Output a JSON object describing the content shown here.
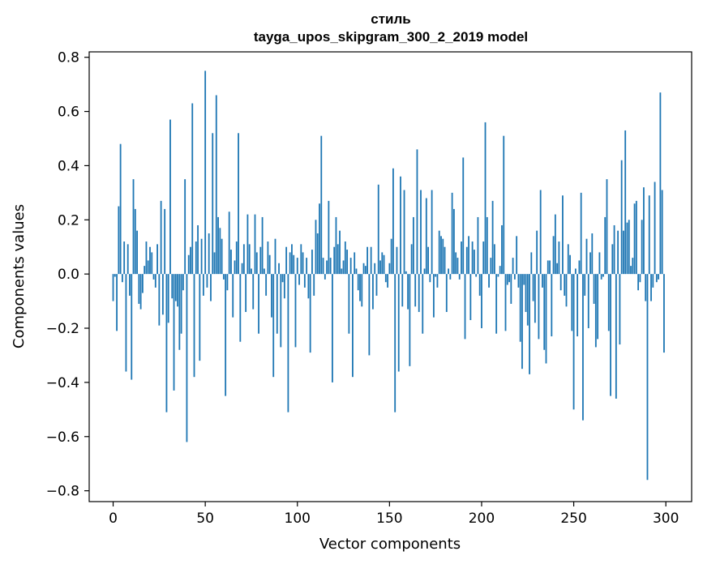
{
  "chart_data": {
    "type": "bar",
    "title": "стиль",
    "subtitle": "tayga_upos_skipgram_300_2_2019 model",
    "xlabel": "Vector components",
    "ylabel": "Components values",
    "xlim": [
      -13,
      314
    ],
    "ylim": [
      -0.84,
      0.82
    ],
    "xticks": [
      0,
      50,
      100,
      150,
      200,
      250,
      300
    ],
    "yticks": [
      -0.8,
      -0.6,
      -0.4,
      -0.2,
      0.0,
      0.2,
      0.4,
      0.6,
      0.8
    ],
    "ytick_labels": [
      "−0.8",
      "−0.6",
      "−0.4",
      "−0.2",
      "0.0",
      "0.2",
      "0.4",
      "0.6",
      "0.8"
    ],
    "bar_color": "#1f77b4",
    "x": [
      0,
      1,
      2,
      3,
      4,
      5,
      6,
      7,
      8,
      9,
      10,
      11,
      12,
      13,
      14,
      15,
      16,
      17,
      18,
      19,
      20,
      21,
      22,
      23,
      24,
      25,
      26,
      27,
      28,
      29,
      30,
      31,
      32,
      33,
      34,
      35,
      36,
      37,
      38,
      39,
      40,
      41,
      42,
      43,
      44,
      45,
      46,
      47,
      48,
      49,
      50,
      51,
      52,
      53,
      54,
      55,
      56,
      57,
      58,
      59,
      60,
      61,
      62,
      63,
      64,
      65,
      66,
      67,
      68,
      69,
      70,
      71,
      72,
      73,
      74,
      75,
      76,
      77,
      78,
      79,
      80,
      81,
      82,
      83,
      84,
      85,
      86,
      87,
      88,
      89,
      90,
      91,
      92,
      93,
      94,
      95,
      96,
      97,
      98,
      99,
      100,
      101,
      102,
      103,
      104,
      105,
      106,
      107,
      108,
      109,
      110,
      111,
      112,
      113,
      114,
      115,
      116,
      117,
      118,
      119,
      120,
      121,
      122,
      123,
      124,
      125,
      126,
      127,
      128,
      129,
      130,
      131,
      132,
      133,
      134,
      135,
      136,
      137,
      138,
      139,
      140,
      141,
      142,
      143,
      144,
      145,
      146,
      147,
      148,
      149,
      150,
      151,
      152,
      153,
      154,
      155,
      156,
      157,
      158,
      159,
      160,
      161,
      162,
      163,
      164,
      165,
      166,
      167,
      168,
      169,
      170,
      171,
      172,
      173,
      174,
      175,
      176,
      177,
      178,
      179,
      180,
      181,
      182,
      183,
      184,
      185,
      186,
      187,
      188,
      189,
      190,
      191,
      192,
      193,
      194,
      195,
      196,
      197,
      198,
      199,
      200,
      201,
      202,
      203,
      204,
      205,
      206,
      207,
      208,
      209,
      210,
      211,
      212,
      213,
      214,
      215,
      216,
      217,
      218,
      219,
      220,
      221,
      222,
      223,
      224,
      225,
      226,
      227,
      228,
      229,
      230,
      231,
      232,
      233,
      234,
      235,
      236,
      237,
      238,
      239,
      240,
      241,
      242,
      243,
      244,
      245,
      246,
      247,
      248,
      249,
      250,
      251,
      252,
      253,
      254,
      255,
      256,
      257,
      258,
      259,
      260,
      261,
      262,
      263,
      264,
      265,
      266,
      267,
      268,
      269,
      270,
      271,
      272,
      273,
      274,
      275,
      276,
      277,
      278,
      279,
      280,
      281,
      282,
      283,
      284,
      285,
      286,
      287,
      288,
      289,
      290,
      291,
      292,
      293,
      294,
      295,
      296,
      297,
      298,
      299
    ],
    "values": [
      -0.1,
      -0.01,
      -0.21,
      0.25,
      0.48,
      -0.03,
      0.12,
      -0.36,
      0.11,
      -0.08,
      -0.39,
      0.35,
      0.24,
      0.16,
      -0.11,
      -0.13,
      -0.07,
      0.03,
      0.12,
      0.05,
      0.1,
      0.08,
      -0.02,
      -0.05,
      0.11,
      -0.19,
      0.27,
      -0.15,
      0.24,
      -0.51,
      -0.18,
      0.57,
      -0.09,
      -0.43,
      -0.1,
      -0.12,
      -0.28,
      -0.22,
      -0.06,
      0.35,
      -0.62,
      0.07,
      0.1,
      0.63,
      -0.38,
      0.12,
      0.18,
      -0.32,
      0.13,
      -0.08,
      0.75,
      -0.05,
      0.15,
      -0.1,
      0.52,
      0.08,
      0.66,
      0.21,
      0.17,
      0.13,
      -0.02,
      -0.45,
      -0.06,
      0.23,
      0.09,
      -0.16,
      0.05,
      0.12,
      0.52,
      -0.25,
      0.04,
      0.11,
      -0.14,
      0.22,
      0.11,
      0.02,
      -0.13,
      0.22,
      0.08,
      -0.22,
      0.1,
      0.21,
      0.02,
      -0.08,
      0.12,
      0.07,
      -0.16,
      -0.38,
      0.13,
      -0.22,
      0.04,
      -0.27,
      -0.03,
      -0.09,
      0.1,
      -0.51,
      0.08,
      0.11,
      0.07,
      -0.27,
      0.06,
      -0.04,
      0.11,
      0.08,
      -0.05,
      0.06,
      -0.09,
      -0.29,
      0.09,
      -0.08,
      0.2,
      0.15,
      0.26,
      0.51,
      0.06,
      -0.02,
      0.05,
      0.27,
      0.06,
      -0.4,
      0.1,
      0.21,
      0.11,
      0.16,
      0.02,
      0.05,
      0.12,
      0.09,
      -0.22,
      0.06,
      -0.38,
      0.08,
      0.02,
      -0.06,
      -0.1,
      -0.12,
      0.04,
      0.03,
      0.1,
      -0.3,
      0.1,
      -0.13,
      0.04,
      -0.08,
      0.33,
      0.05,
      0.08,
      0.07,
      -0.03,
      -0.05,
      0.04,
      0.13,
      0.39,
      -0.51,
      0.1,
      -0.36,
      0.36,
      -0.12,
      0.31,
      0.01,
      -0.13,
      -0.34,
      0.11,
      0.21,
      -0.12,
      0.46,
      -0.14,
      0.31,
      -0.22,
      0.02,
      0.28,
      0.1,
      -0.03,
      0.31,
      -0.16,
      -0.01,
      -0.05,
      0.16,
      0.14,
      0.13,
      0.1,
      -0.14,
      0.02,
      -0.02,
      0.3,
      0.24,
      0.08,
      0.06,
      -0.02,
      0.12,
      0.43,
      -0.24,
      0.1,
      0.14,
      -0.17,
      0.12,
      0.09,
      -0.01,
      0.21,
      -0.08,
      -0.2,
      0.12,
      0.56,
      0.21,
      -0.05,
      0.06,
      0.27,
      0.11,
      -0.22,
      -0.01,
      0.03,
      0.18,
      0.51,
      -0.21,
      -0.04,
      -0.03,
      -0.11,
      0.06,
      -0.02,
      0.14,
      -0.05,
      -0.25,
      -0.35,
      -0.04,
      -0.14,
      -0.19,
      -0.37,
      0.08,
      -0.1,
      -0.18,
      0.16,
      -0.24,
      0.31,
      -0.05,
      -0.28,
      -0.33,
      0.05,
      0.05,
      -0.23,
      0.14,
      0.22,
      0.04,
      0.12,
      -0.06,
      0.29,
      -0.08,
      -0.12,
      0.11,
      0.07,
      -0.21,
      -0.5,
      0.02,
      -0.23,
      0.05,
      0.3,
      -0.54,
      -0.08,
      0.13,
      -0.2,
      0.08,
      0.15,
      -0.11,
      -0.27,
      -0.24,
      0.08,
      -0.02,
      -0.01,
      0.21,
      0.35,
      -0.21,
      -0.45,
      0.11,
      0.18,
      -0.46,
      0.16,
      -0.26,
      0.42,
      0.16,
      0.53,
      0.19,
      0.2,
      0.03,
      0.06,
      0.26,
      0.27,
      -0.06,
      -0.03,
      0.2,
      0.32,
      -0.1,
      -0.76,
      0.29,
      -0.1,
      -0.05,
      0.34,
      -0.03,
      -0.02,
      0.67,
      0.31,
      -0.29
    ]
  }
}
